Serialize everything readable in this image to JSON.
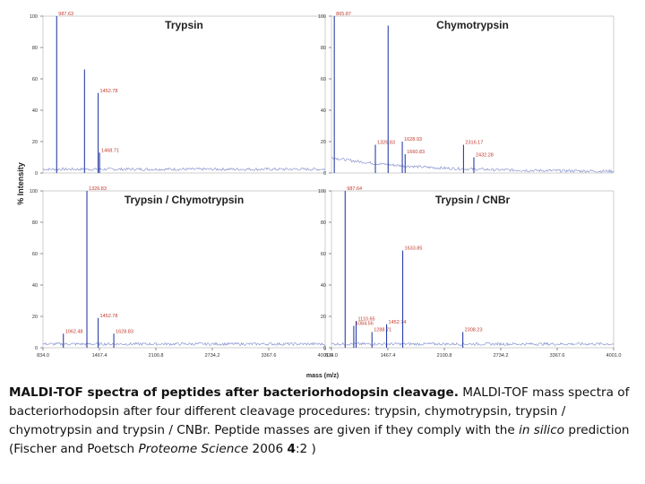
{
  "figure": {
    "ylabel": "% Intensity",
    "xlabel": "mass (m/z)",
    "x_ticks": [
      "834.0",
      "1467.4",
      "2100.8",
      "2734.2",
      "3367.6",
      "4001.0"
    ],
    "y_ticks": [
      "0",
      "20",
      "40",
      "60",
      "80",
      "100"
    ]
  },
  "chart_data": [
    {
      "type": "line",
      "title": "Trypsin",
      "xlim": [
        834.0,
        4001.0
      ],
      "ylim": [
        0,
        100
      ],
      "peaks": [
        {
          "x": 987.63,
          "y": 100,
          "label": "987.63"
        },
        {
          "x": 1300,
          "y": 66,
          "label": ""
        },
        {
          "x": 1452.78,
          "y": 51,
          "label": "1452.78"
        },
        {
          "x": 1468.71,
          "y": 13,
          "label": "1468.71"
        }
      ]
    },
    {
      "type": "line",
      "title": "Chymotrypsin",
      "xlim": [
        834.0,
        4001.0
      ],
      "ylim": [
        0,
        100
      ],
      "peaks": [
        {
          "x": 865.87,
          "y": 100,
          "label": "865.87"
        },
        {
          "x": 1326.83,
          "y": 18,
          "label": "1326.83"
        },
        {
          "x": 1470,
          "y": 94,
          "label": ""
        },
        {
          "x": 1628.93,
          "y": 20,
          "label": "1628.93"
        },
        {
          "x": 1660.83,
          "y": 12,
          "label": "1660.83"
        },
        {
          "x": 2316.17,
          "y": 18,
          "label": "2316.17"
        },
        {
          "x": 2432.28,
          "y": 10,
          "label": "2432.28"
        }
      ]
    },
    {
      "type": "line",
      "title": "Trypsin / Chymotrypsin",
      "xlim": [
        834.0,
        4001.0
      ],
      "ylim": [
        0,
        100
      ],
      "peaks": [
        {
          "x": 1062.48,
          "y": 9,
          "label": "1062.48"
        },
        {
          "x": 1326.83,
          "y": 100,
          "label": "1326.83"
        },
        {
          "x": 1452.78,
          "y": 19,
          "label": "1452.78"
        },
        {
          "x": 1628.83,
          "y": 9,
          "label": "1628.83"
        }
      ]
    },
    {
      "type": "line",
      "title": "Trypsin / CNBr",
      "xlim": [
        834.0,
        4001.0
      ],
      "ylim": [
        0,
        100
      ],
      "peaks": [
        {
          "x": 987.64,
          "y": 100,
          "label": "987.64"
        },
        {
          "x": 1110.65,
          "y": 17,
          "label": "1110.65"
        },
        {
          "x": 1084.56,
          "y": 14,
          "label": "1084.56"
        },
        {
          "x": 1288.71,
          "y": 10,
          "label": "1288.71"
        },
        {
          "x": 1452.74,
          "y": 15,
          "label": "1452.74"
        },
        {
          "x": 1633.85,
          "y": 62,
          "label": "1633.85"
        },
        {
          "x": 2308.23,
          "y": 10,
          "label": "2308.23"
        }
      ]
    }
  ],
  "caption": {
    "bold": "MALDI-TOF spectra of peptides after bacteriorhodopsin cleavage.",
    "text1": " MALDI-TOF mass spectra of bacteriorhodopsin after four different cleavage procedures: trypsin, chymotrypsin, trypsin / chymotrypsin and trypsin / CNBr. Peptide masses are given if they comply with the ",
    "italic1": "in silico",
    "text2": " prediction (Fischer and Poetsch ",
    "italic2": "Proteome Science",
    "text3": " 2006 ",
    "bold2": "4",
    "text4": ":2 )"
  },
  "colors": {
    "spectrum": "#2b3fa8",
    "baseline": "#7a86c8",
    "text": "#111111"
  }
}
